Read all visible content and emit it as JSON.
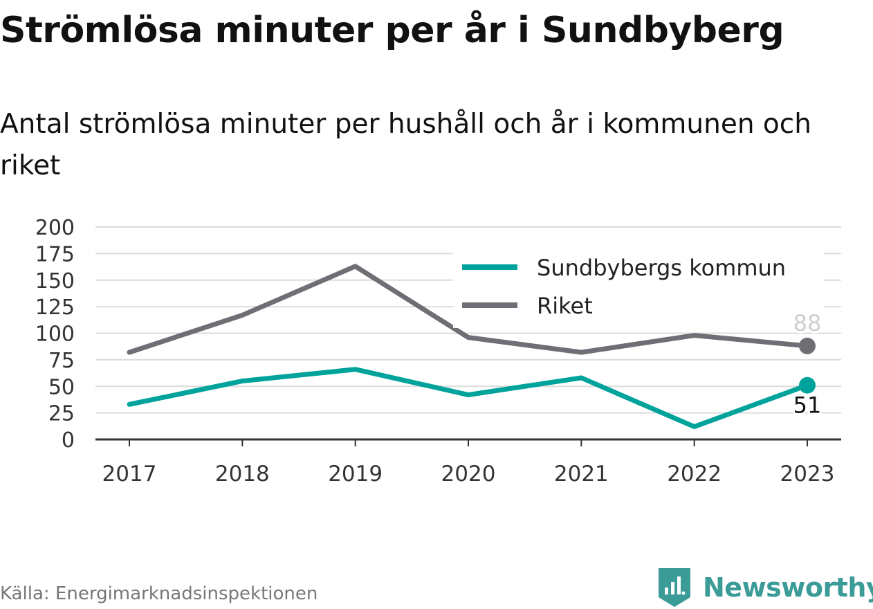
{
  "header": {
    "title": "Strömlösa minuter per år i Sundbyberg",
    "subtitle": "Antal strömlösa minuter per hushåll och år i kommunen och riket"
  },
  "footer": {
    "source": "Källa: Energimarknadsinspektionen",
    "brand": "Newsworthy",
    "brand_icon": "bar-chart-badge-icon",
    "brand_color": "#3a9b97"
  },
  "chart_data": {
    "type": "line",
    "x": [
      "2017",
      "2018",
      "2019",
      "2020",
      "2021",
      "2022",
      "2023"
    ],
    "yticks": [
      "0",
      "25",
      "50",
      "75",
      "100",
      "125",
      "150",
      "175",
      "200"
    ],
    "ylim": [
      0,
      200
    ],
    "grid": true,
    "legend_position": "top-right",
    "series": [
      {
        "name": "Sundbybergs kommun",
        "color": "#00a39b",
        "values": [
          33,
          55,
          66,
          42,
          58,
          12,
          51
        ],
        "end_label": "51"
      },
      {
        "name": "Riket",
        "color": "#6f6e74",
        "values": [
          82,
          117,
          163,
          96,
          82,
          98,
          88
        ],
        "end_label": "88"
      }
    ]
  }
}
